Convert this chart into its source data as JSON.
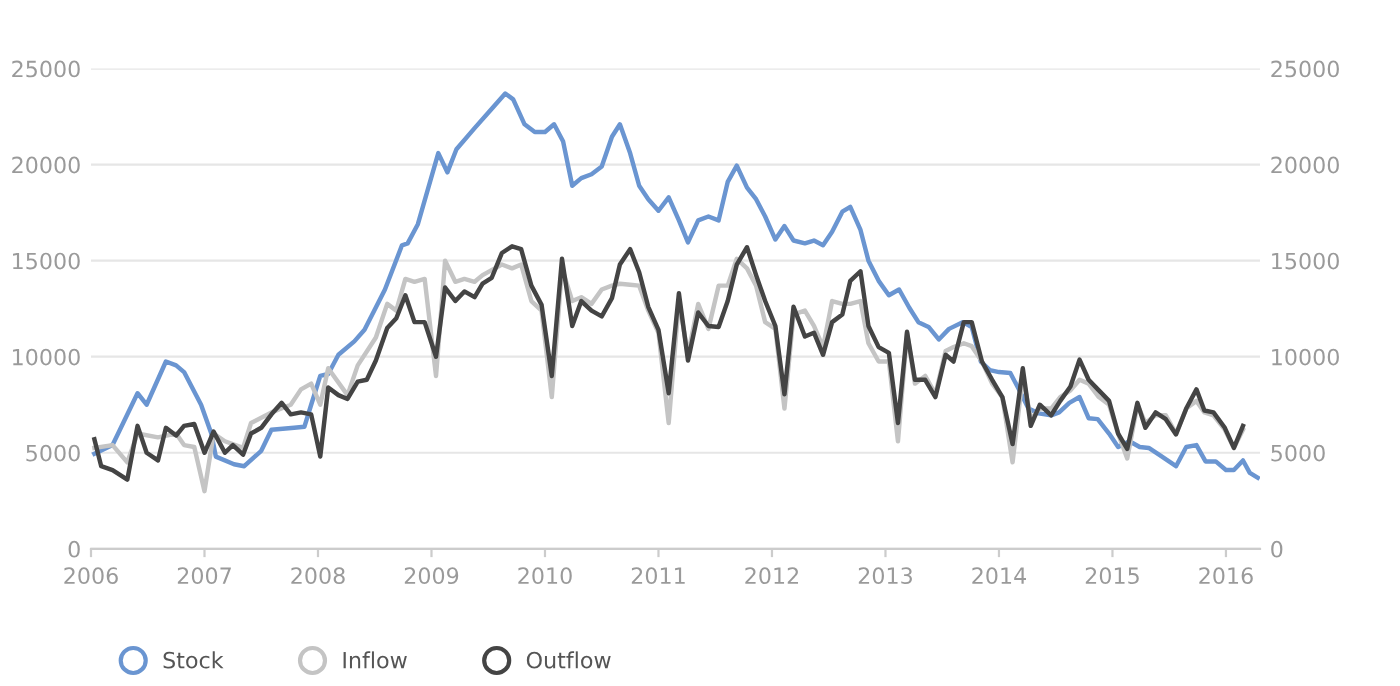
{
  "chart_data": {
    "type": "line",
    "xlim": [
      2006,
      2016.3
    ],
    "xticks": [
      2006,
      2007,
      2008,
      2009,
      2010,
      2011,
      2012,
      2013,
      2014,
      2015,
      2016
    ],
    "ylim": [
      0,
      25000
    ],
    "yticks": [
      0,
      5000,
      10000,
      15000,
      20000,
      25000
    ],
    "y2lim": [
      0,
      25000
    ],
    "y2ticks": [
      0,
      5000,
      10000,
      15000,
      20000,
      25000
    ],
    "grid": "y",
    "legend": "bottom left",
    "marker": "none",
    "line_style": "solid",
    "series": [
      {
        "name": "Stock",
        "color": "#6a95d1",
        "x": [
          2006.03,
          2006.19,
          2006.41,
          2006.49,
          2006.66,
          2006.75,
          2006.82,
          2006.97,
          2007.06,
          2007.1,
          2007.26,
          2007.35,
          2007.5,
          2007.59,
          2007.79,
          2007.88,
          2007.94,
          2008.02,
          2008.09,
          2008.18,
          2008.32,
          2008.41,
          2008.59,
          2008.74,
          2008.79,
          2008.88,
          2009.06,
          2009.14,
          2009.22,
          2009.38,
          2009.5,
          2009.65,
          2009.72,
          2009.82,
          2009.91,
          2010.0,
          2010.08,
          2010.16,
          2010.24,
          2010.32,
          2010.41,
          2010.5,
          2010.59,
          2010.66,
          2010.75,
          2010.83,
          2010.91,
          2011.0,
          2011.09,
          2011.18,
          2011.26,
          2011.35,
          2011.44,
          2011.53,
          2011.61,
          2011.69,
          2011.78,
          2011.86,
          2011.94,
          2012.03,
          2012.11,
          2012.19,
          2012.29,
          2012.37,
          2012.45,
          2012.53,
          2012.62,
          2012.69,
          2012.78,
          2012.85,
          2012.94,
          2013.03,
          2013.12,
          2013.21,
          2013.29,
          2013.38,
          2013.47,
          2013.56,
          2013.68,
          2013.76,
          2013.84,
          2013.92,
          2014.0,
          2014.1,
          2014.18,
          2014.26,
          2014.35,
          2014.46,
          2014.53,
          2014.62,
          2014.71,
          2014.79,
          2014.87,
          2014.97,
          2015.05,
          2015.15,
          2015.24,
          2015.32,
          2015.41,
          2015.56,
          2015.65,
          2015.74,
          2015.82,
          2015.91,
          2016.0,
          2016.07,
          2016.15,
          2016.21,
          2016.28
        ],
        "values": [
          4950,
          5400,
          8100,
          7500,
          9750,
          9550,
          9200,
          7500,
          6000,
          4800,
          4400,
          4300,
          5100,
          6200,
          6300,
          6350,
          7500,
          9000,
          9100,
          10100,
          10800,
          11400,
          13500,
          15800,
          15900,
          16900,
          20600,
          19600,
          20800,
          21900,
          22700,
          23700,
          23400,
          22100,
          21700,
          21700,
          22100,
          21200,
          18900,
          19300,
          19500,
          19900,
          21450,
          22100,
          20600,
          18900,
          18200,
          17600,
          18300,
          17100,
          15950,
          17100,
          17300,
          17100,
          19100,
          19950,
          18800,
          18200,
          17300,
          16100,
          16800,
          16050,
          15900,
          16050,
          15800,
          16500,
          17550,
          17800,
          16600,
          15000,
          13950,
          13200,
          13500,
          12550,
          11800,
          11550,
          10900,
          11450,
          11800,
          11550,
          9750,
          9300,
          9200,
          9150,
          8250,
          7300,
          7050,
          6950,
          7100,
          7600,
          7900,
          6800,
          6750,
          6000,
          5300,
          5600,
          5300,
          5250,
          4900,
          4300,
          5300,
          5400,
          4550,
          4550,
          4100,
          4100,
          4600,
          3950,
          3700
        ]
      },
      {
        "name": "Inflow",
        "color": "#c4c4c4",
        "x": [
          2006.03,
          2006.19,
          2006.32,
          2006.41,
          2006.59,
          2006.75,
          2006.82,
          2006.91,
          2007.0,
          2007.08,
          2007.18,
          2007.34,
          2007.41,
          2007.59,
          2007.76,
          2007.85,
          2007.94,
          2008.02,
          2008.09,
          2008.26,
          2008.35,
          2008.51,
          2008.61,
          2008.69,
          2008.77,
          2008.85,
          2008.94,
          2009.04,
          2009.12,
          2009.21,
          2009.29,
          2009.38,
          2009.45,
          2009.62,
          2009.71,
          2009.79,
          2009.88,
          2009.97,
          2010.06,
          2010.15,
          2010.24,
          2010.32,
          2010.41,
          2010.5,
          2010.59,
          2010.66,
          2010.75,
          2010.83,
          2010.91,
          2011.0,
          2011.09,
          2011.18,
          2011.26,
          2011.35,
          2011.44,
          2011.53,
          2011.61,
          2011.69,
          2011.78,
          2011.86,
          2011.94,
          2012.03,
          2012.11,
          2012.19,
          2012.29,
          2012.37,
          2012.45,
          2012.53,
          2012.62,
          2012.69,
          2012.78,
          2012.85,
          2012.94,
          2013.03,
          2013.11,
          2013.19,
          2013.26,
          2013.35,
          2013.44,
          2013.53,
          2013.6,
          2013.69,
          2013.76,
          2013.85,
          2013.94,
          2014.03,
          2014.12,
          2014.21,
          2014.28,
          2014.36,
          2014.46,
          2014.54,
          2014.63,
          2014.71,
          2014.79,
          2014.88,
          2014.97,
          2015.05,
          2015.13,
          2015.22,
          2015.29,
          2015.38,
          2015.47,
          2015.56,
          2015.65,
          2015.74,
          2015.81,
          2015.89,
          2015.99,
          2016.07,
          2016.15
        ],
        "values": [
          5250,
          5400,
          4500,
          6000,
          5800,
          6000,
          5400,
          5300,
          3000,
          6000,
          5600,
          5250,
          6550,
          7100,
          7500,
          8300,
          8600,
          7500,
          9400,
          8000,
          9550,
          11000,
          12750,
          12400,
          14050,
          13900,
          14050,
          9000,
          15000,
          13900,
          14050,
          13900,
          14250,
          14800,
          14600,
          14800,
          12900,
          12400,
          7900,
          14600,
          12900,
          13100,
          12750,
          13500,
          13700,
          13800,
          13750,
          13700,
          12400,
          11250,
          6550,
          12900,
          10100,
          12750,
          11450,
          13700,
          13700,
          15100,
          14600,
          13700,
          11800,
          11450,
          7300,
          12200,
          12400,
          11600,
          10500,
          12900,
          12750,
          12750,
          12900,
          10700,
          9750,
          9750,
          5600,
          11250,
          8600,
          9000,
          8050,
          10300,
          10500,
          10700,
          10550,
          9750,
          8600,
          7900,
          4500,
          9000,
          6750,
          7300,
          7300,
          7900,
          8250,
          8800,
          8600,
          7900,
          7500,
          6000,
          4700,
          7500,
          6550,
          6950,
          6950,
          6000,
          7300,
          7700,
          7100,
          6950,
          6200,
          5250,
          6200
        ]
      },
      {
        "name": "Outflow",
        "color": "#444444",
        "x": [
          2006.03,
          2006.09,
          2006.19,
          2006.32,
          2006.41,
          2006.49,
          2006.59,
          2006.66,
          2006.75,
          2006.82,
          2006.91,
          2007.0,
          2007.08,
          2007.18,
          2007.25,
          2007.34,
          2007.41,
          2007.5,
          2007.59,
          2007.68,
          2007.76,
          2007.85,
          2007.94,
          2008.02,
          2008.09,
          2008.18,
          2008.26,
          2008.35,
          2008.43,
          2008.51,
          2008.61,
          2008.69,
          2008.77,
          2008.85,
          2008.94,
          2009.04,
          2009.12,
          2009.21,
          2009.29,
          2009.38,
          2009.45,
          2009.53,
          2009.62,
          2009.71,
          2009.79,
          2009.88,
          2009.97,
          2010.06,
          2010.15,
          2010.24,
          2010.32,
          2010.41,
          2010.5,
          2010.59,
          2010.66,
          2010.75,
          2010.83,
          2010.91,
          2011.0,
          2011.09,
          2011.18,
          2011.26,
          2011.35,
          2011.44,
          2011.53,
          2011.61,
          2011.69,
          2011.78,
          2011.86,
          2011.94,
          2012.03,
          2012.11,
          2012.19,
          2012.29,
          2012.37,
          2012.45,
          2012.53,
          2012.62,
          2012.69,
          2012.78,
          2012.85,
          2012.94,
          2013.03,
          2013.11,
          2013.19,
          2013.26,
          2013.35,
          2013.44,
          2013.53,
          2013.6,
          2013.69,
          2013.76,
          2013.85,
          2013.94,
          2014.03,
          2014.12,
          2014.21,
          2014.28,
          2014.36,
          2014.46,
          2014.54,
          2014.63,
          2014.71,
          2014.79,
          2014.88,
          2014.97,
          2015.05,
          2015.13,
          2015.22,
          2015.29,
          2015.38,
          2015.47,
          2015.56,
          2015.65,
          2015.74,
          2015.81,
          2015.89,
          2015.99,
          2016.07,
          2016.15
        ],
        "values": [
          5700,
          4300,
          4100,
          3600,
          6400,
          5000,
          4600,
          6300,
          5900,
          6400,
          6500,
          5000,
          6100,
          5000,
          5400,
          4900,
          6000,
          6300,
          7000,
          7600,
          7000,
          7100,
          7000,
          4800,
          8400,
          8000,
          7800,
          8700,
          8800,
          9800,
          11500,
          12000,
          13200,
          11800,
          11800,
          10000,
          13600,
          12900,
          13400,
          13100,
          13800,
          14100,
          15400,
          15750,
          15600,
          13700,
          12700,
          9000,
          15100,
          11600,
          12900,
          12400,
          12100,
          13050,
          14800,
          15600,
          14400,
          12600,
          11400,
          8100,
          13300,
          9800,
          12300,
          11600,
          11550,
          12900,
          14800,
          15700,
          14250,
          12900,
          11600,
          8050,
          12600,
          11050,
          11250,
          10100,
          11800,
          12200,
          13950,
          14450,
          11600,
          10500,
          10200,
          6550,
          11300,
          8800,
          8800,
          7900,
          10100,
          9750,
          11800,
          11800,
          9750,
          8800,
          7900,
          5450,
          9400,
          6400,
          7500,
          6950,
          7700,
          8450,
          9850,
          8800,
          8250,
          7700,
          6000,
          5200,
          7600,
          6300,
          7100,
          6750,
          5950,
          7300,
          8300,
          7200,
          7100,
          6300,
          5250,
          6400
        ]
      }
    ]
  }
}
